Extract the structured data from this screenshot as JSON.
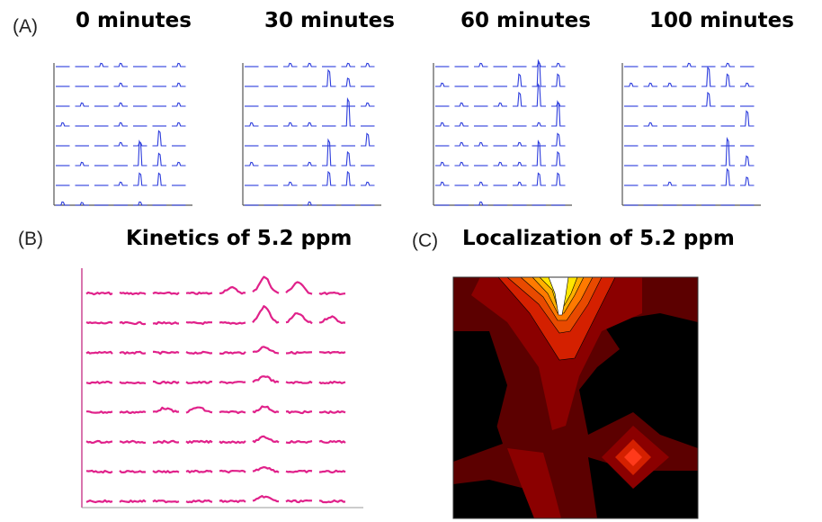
{
  "panel_a": {
    "label": "(A)",
    "subplots": [
      {
        "title": "0 minutes",
        "peaks": [
          [
            4,
            5,
            0.55
          ],
          [
            5,
            4,
            0.9
          ],
          [
            5,
            5,
            0.45
          ],
          [
            6,
            4,
            0.45
          ],
          [
            6,
            5,
            0.45
          ],
          [
            7,
            1,
            0.1
          ]
        ]
      },
      {
        "title": "30 minutes",
        "peaks": [
          [
            1,
            4,
            0.6
          ],
          [
            1,
            5,
            0.3
          ],
          [
            3,
            5,
            1.0
          ],
          [
            4,
            6,
            0.45
          ],
          [
            5,
            4,
            0.95
          ],
          [
            5,
            5,
            0.5
          ],
          [
            6,
            4,
            0.5
          ],
          [
            6,
            5,
            0.5
          ]
        ]
      },
      {
        "title": "60 minutes",
        "peaks": [
          [
            1,
            4,
            0.45
          ],
          [
            1,
            5,
            0.95
          ],
          [
            1,
            6,
            0.45
          ],
          [
            2,
            4,
            0.5
          ],
          [
            2,
            5,
            0.8
          ],
          [
            3,
            6,
            0.9
          ],
          [
            4,
            6,
            0.45
          ],
          [
            5,
            5,
            0.9
          ],
          [
            5,
            6,
            0.5
          ],
          [
            6,
            5,
            0.45
          ],
          [
            6,
            6,
            0.45
          ]
        ]
      },
      {
        "title": "100 minutes",
        "peaks": [
          [
            1,
            4,
            0.7
          ],
          [
            1,
            5,
            0.45
          ],
          [
            2,
            4,
            0.5
          ],
          [
            3,
            6,
            0.55
          ],
          [
            5,
            5,
            1.0
          ],
          [
            5,
            6,
            0.35
          ],
          [
            6,
            5,
            0.6
          ],
          [
            6,
            6,
            0.3
          ]
        ]
      }
    ]
  },
  "panel_b": {
    "label": "(B)",
    "title": "Kinetics of 5.2 ppm",
    "bumps": [
      [
        1,
        4,
        0.35
      ],
      [
        1,
        5,
        1.0
      ],
      [
        1,
        6,
        0.7
      ],
      [
        2,
        5,
        1.0
      ],
      [
        2,
        6,
        0.6
      ],
      [
        2,
        7,
        0.4
      ],
      [
        3,
        5,
        0.35
      ],
      [
        4,
        5,
        0.4
      ],
      [
        5,
        2,
        0.25
      ],
      [
        5,
        3,
        0.3
      ],
      [
        5,
        5,
        0.35
      ],
      [
        6,
        5,
        0.3
      ],
      [
        7,
        5,
        0.3
      ],
      [
        8,
        5,
        0.3
      ]
    ]
  },
  "panel_c": {
    "label": "(C)",
    "title": "Localization of 5.2 ppm",
    "colors": {
      "background": "#000000",
      "dark_red": "#5c0000",
      "red": "#8b0000",
      "bright": "#d42000",
      "orange": "#ff7a00",
      "yellow": "#ffe600",
      "white": "#ffffff"
    }
  },
  "colors": {
    "spectra": "#2b3bdc",
    "kinetics": "#e0218a"
  }
}
